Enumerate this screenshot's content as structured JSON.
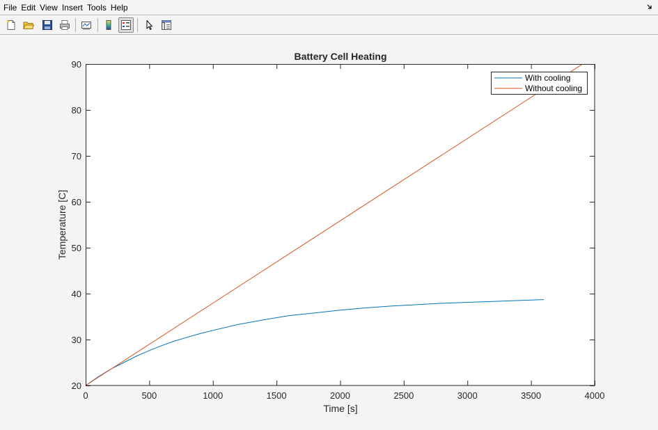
{
  "menubar": {
    "items": [
      "File",
      "Edit",
      "View",
      "Insert",
      "Tools",
      "Help"
    ]
  },
  "toolbar": {
    "icons": [
      "new-figure-icon",
      "open-file-icon",
      "save-icon",
      "print-icon",
      "link-plot-icon",
      "insert-colorbar-icon",
      "insert-legend-icon",
      "edit-plot-icon",
      "property-inspector-icon"
    ],
    "active": "insert-legend-icon"
  },
  "colors": {
    "with_cooling": "#0072bd",
    "without_cooling": "#d95319"
  },
  "chart_data": {
    "type": "line",
    "title": "Battery Cell Heating",
    "xlabel": "Time [s]",
    "ylabel": "Temperature [C]",
    "xlim": [
      0,
      4000
    ],
    "ylim": [
      20,
      90
    ],
    "xticks": [
      0,
      500,
      1000,
      1500,
      2000,
      2500,
      3000,
      3500,
      4000
    ],
    "yticks": [
      20,
      30,
      40,
      50,
      60,
      70,
      80,
      90
    ],
    "grid": false,
    "legend_position": "top-right",
    "series": [
      {
        "name": "With cooling",
        "color": "#0072bd",
        "x": [
          0,
          100,
          200,
          300,
          400,
          500,
          600,
          700,
          800,
          900,
          1000,
          1200,
          1400,
          1600,
          1800,
          2000,
          2200,
          2400,
          2600,
          2800,
          3000,
          3200,
          3400,
          3600
        ],
        "y": [
          20,
          21.9,
          23.6,
          25.0,
          26.4,
          27.6,
          28.7,
          29.7,
          30.5,
          31.3,
          32.0,
          33.3,
          34.3,
          35.2,
          35.8,
          36.4,
          36.9,
          37.3,
          37.6,
          37.9,
          38.1,
          38.3,
          38.5,
          38.7
        ]
      },
      {
        "name": "Without cooling",
        "color": "#d95319",
        "x": [
          0,
          4000
        ],
        "y": [
          20,
          91.7
        ]
      }
    ]
  }
}
